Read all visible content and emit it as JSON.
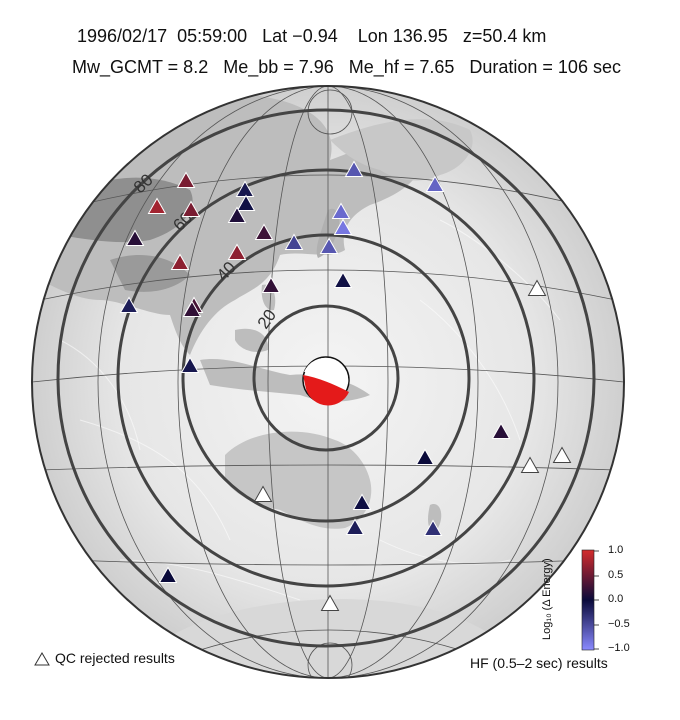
{
  "header": {
    "line1": "1996/02/17  05:59:00   Lat −0.94    Lon 136.95   z=50.4 km",
    "line2": "Mw_GCMT = 8.2   Me_bb = 7.96   Me_hf = 7.65   Duration = 106 sec"
  },
  "rings": {
    "labels": [
      "20",
      "40",
      "60",
      "80"
    ]
  },
  "legend": {
    "qc_label": "QC rejected results",
    "hf_label": "HF (0.5–2 sec) results"
  },
  "colorbar": {
    "title": "Log₁₀ (Δ Energy)",
    "ticks": [
      "1.0",
      "0.5",
      "0.0",
      "−0.5",
      "−1.0"
    ],
    "range": [
      -1.0,
      1.0
    ],
    "colors": {
      "high": "#d42c2c",
      "mid": "#0a0a3a",
      "low": "#7f7fff"
    }
  },
  "stations": [
    {
      "v": 0.55,
      "qc": false
    },
    {
      "v": 0.75,
      "qc": false
    },
    {
      "v": 0.55,
      "qc": false
    },
    {
      "v": 0.15,
      "qc": false
    },
    {
      "v": 0.65,
      "qc": false
    },
    {
      "v": 0.65,
      "qc": false
    },
    {
      "v": 0.25,
      "qc": false
    },
    {
      "v": 0.2,
      "qc": false
    },
    {
      "v": 0.3,
      "qc": false
    },
    {
      "v": -0.1,
      "qc": false
    },
    {
      "v": -0.05,
      "qc": false
    },
    {
      "v": 0.1,
      "qc": false
    },
    {
      "v": -0.6,
      "qc": false
    },
    {
      "v": -0.75,
      "qc": false
    },
    {
      "v": -0.85,
      "qc": false
    },
    {
      "v": -0.45,
      "qc": false
    },
    {
      "v": -0.6,
      "qc": false
    },
    {
      "v": -0.05,
      "qc": false
    },
    {
      "v": -0.7,
      "qc": false
    },
    {
      "v": -0.15,
      "qc": false
    },
    {
      "v": -0.1,
      "qc": false
    },
    {
      "v": 0.0,
      "qc": false
    },
    {
      "v": 0.15,
      "qc": false
    },
    {
      "v": -0.05,
      "qc": false
    },
    {
      "v": -0.15,
      "qc": false
    },
    {
      "v": -0.3,
      "qc": false
    },
    {
      "v": 0.2,
      "qc": false
    },
    {
      "v": 0.0,
      "qc": false
    },
    {
      "v": 0,
      "qc": true
    },
    {
      "v": 0,
      "qc": true
    },
    {
      "v": 0,
      "qc": true
    },
    {
      "v": 0,
      "qc": true
    },
    {
      "v": 0,
      "qc": true
    }
  ]
}
